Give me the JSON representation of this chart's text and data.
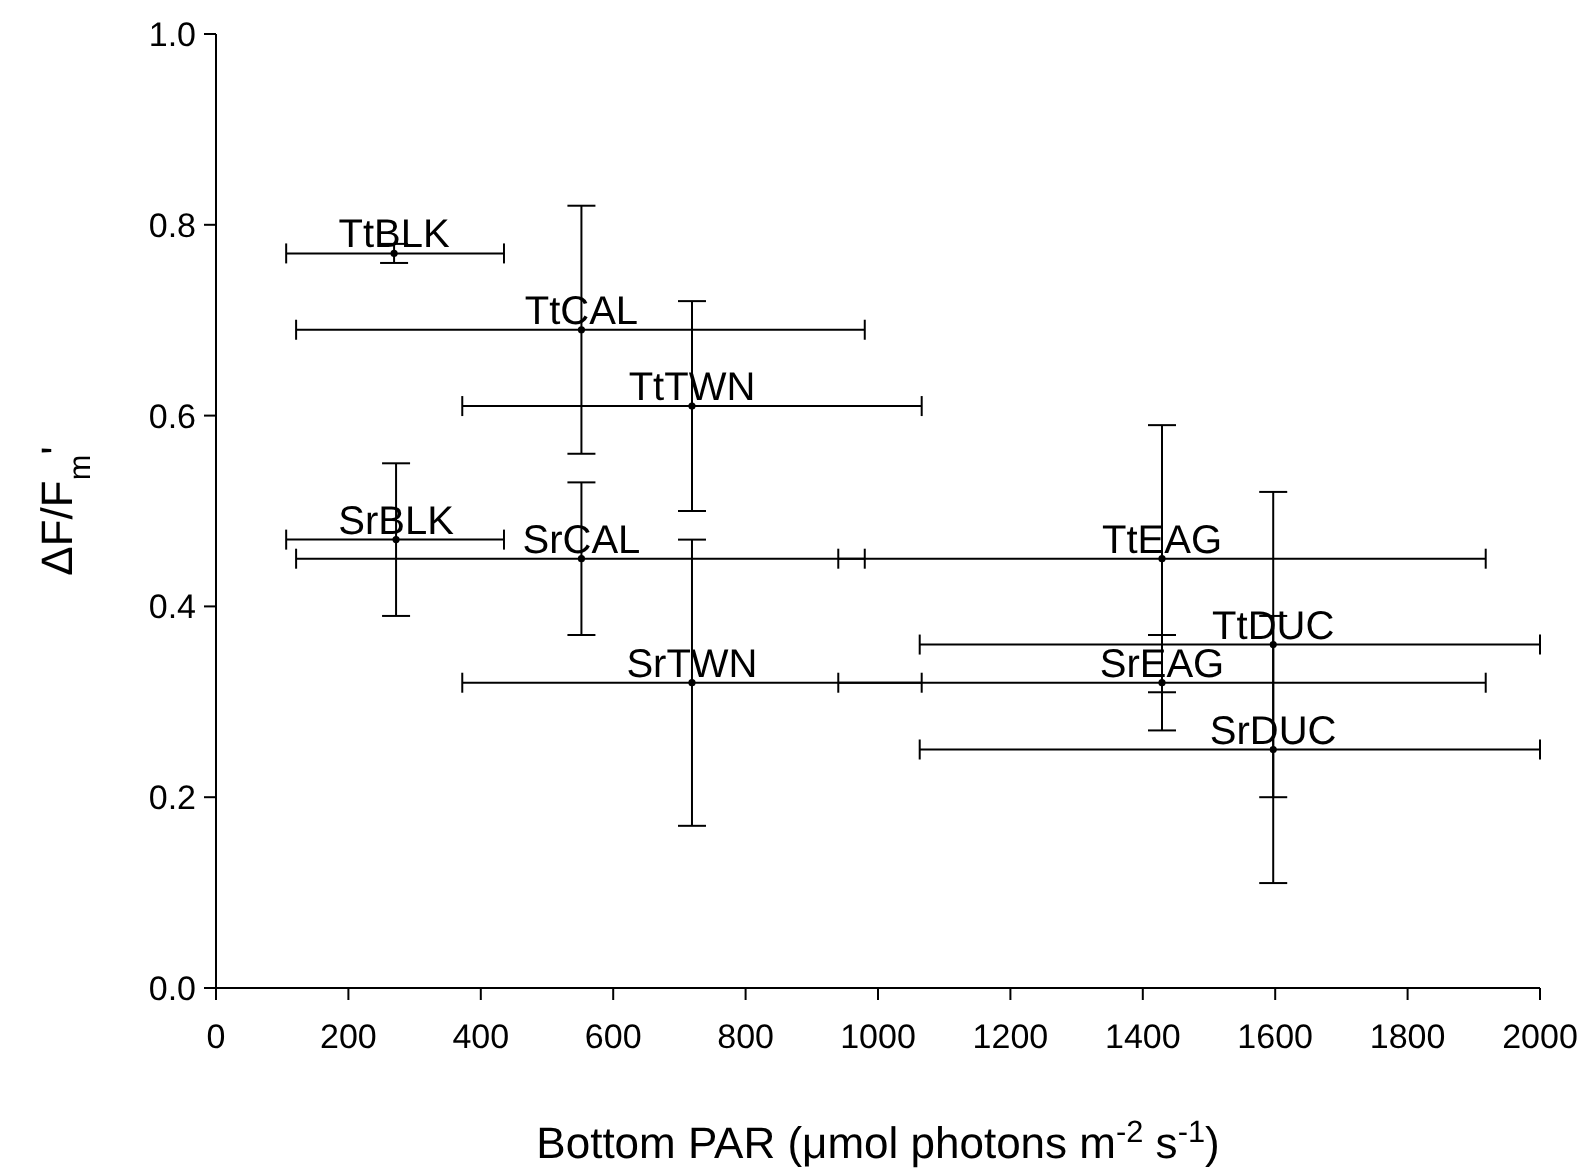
{
  "chart_data": {
    "type": "scatter",
    "xlabel": "Bottom PAR (μmol photons m$^{-2}$ s$^{-1}$)",
    "ylabel": "ΔF/F$_{m}$'",
    "x": [
      269,
      552,
      719,
      272,
      552,
      719,
      1429,
      1429,
      1597,
      1597
    ],
    "series": [
      {
        "color": "#000000",
        "values": [
          0.77,
          0.69,
          0.61,
          0.47,
          0.45,
          0.32,
          0.45,
          0.32,
          0.36,
          0.25
        ],
        "errors": [
          0.01,
          0.13,
          0.11,
          0.08,
          0.08,
          0.15,
          0.14,
          0.05,
          0.16,
          0.14
        ],
        "xerrors": [
          [
            106,
            435
          ],
          [
            121,
            980
          ],
          [
            372,
            1066
          ],
          [
            106,
            435
          ],
          [
            121,
            980
          ],
          [
            372,
            1066
          ],
          [
            940,
            1918
          ],
          [
            940,
            1918
          ],
          [
            1063,
            2000
          ],
          [
            1063,
            2000
          ]
        ]
      }
    ],
    "annotations": [
      {
        "text": "TtBLK",
        "x": 269,
        "y": 0.77
      },
      {
        "text": "TtCAL",
        "x": 552,
        "y": 0.69
      },
      {
        "text": "TtTWN",
        "x": 719,
        "y": 0.61
      },
      {
        "text": "SrBLK",
        "x": 272,
        "y": 0.47
      },
      {
        "text": "SrCAL",
        "x": 552,
        "y": 0.45
      },
      {
        "text": "SrTWN",
        "x": 719,
        "y": 0.32
      },
      {
        "text": "TtEAG",
        "x": 1429,
        "y": 0.45
      },
      {
        "text": "SrEAG",
        "x": 1429,
        "y": 0.32
      },
      {
        "text": "TtDUC",
        "x": 1597,
        "y": 0.36
      },
      {
        "text": "SrDUC",
        "x": 1597,
        "y": 0.25
      }
    ],
    "grid": false,
    "xlim": [
      0,
      2000
    ],
    "xticks": [
      0,
      200,
      400,
      600,
      800,
      1000,
      1200,
      1400,
      1600,
      1800,
      2000
    ],
    "ylim": [
      0,
      1
    ],
    "yticks": [
      {
        "value": 0,
        "label": "0.0"
      },
      {
        "value": 0.2,
        "label": "0.2"
      },
      {
        "value": 0.4,
        "label": "0.4"
      },
      {
        "value": 0.6,
        "label": "0.6"
      },
      {
        "value": 0.8,
        "label": "0.8"
      },
      {
        "value": 1,
        "label": "1.0"
      }
    ]
  }
}
